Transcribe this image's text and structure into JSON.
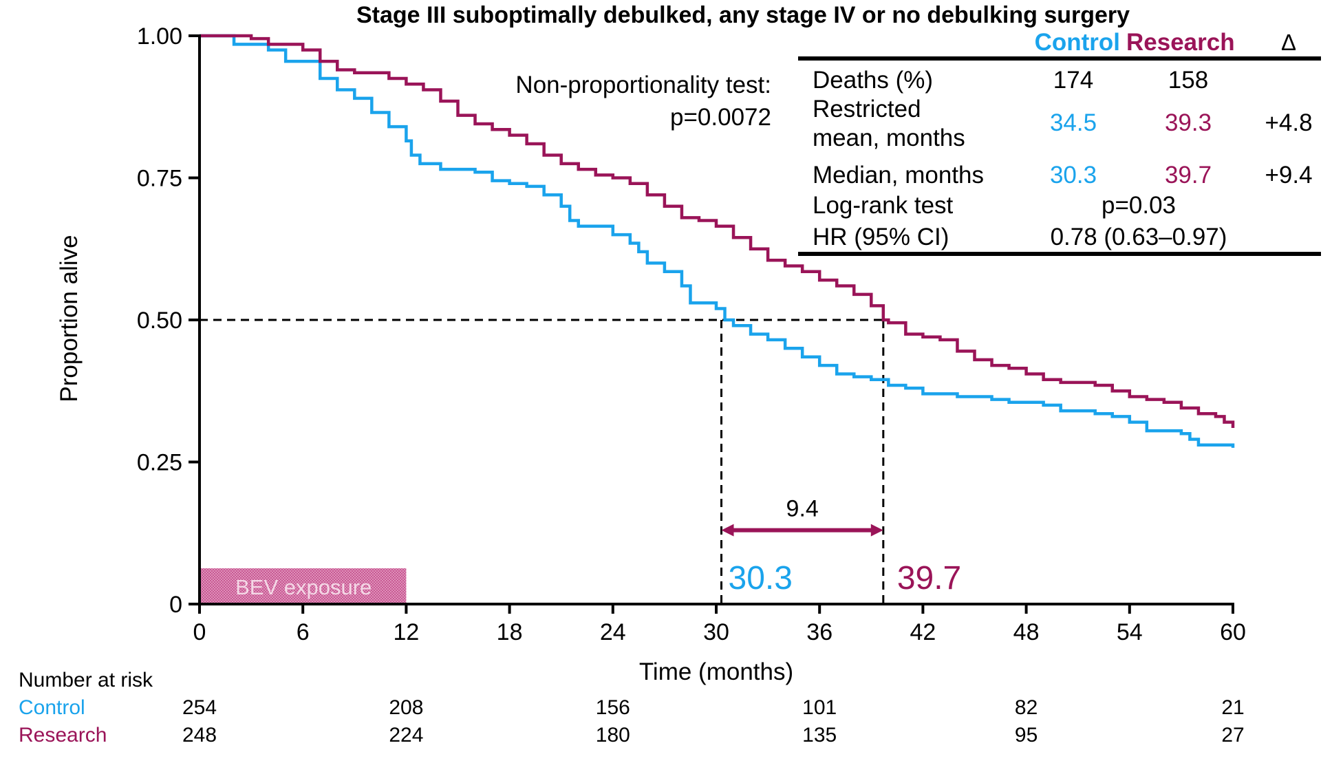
{
  "colors": {
    "control": "#1aa3ec",
    "research": "#9a1458",
    "axis": "#000000",
    "bev_fill": "#c44d8c"
  },
  "chart_data": {
    "type": "line",
    "subtype": "kaplan-meier",
    "title": "Stage III suboptimally debulked, any stage IV or  no debulking surgery",
    "xlabel": "Time (months)",
    "ylabel": "Proportion alive",
    "xlim": [
      0,
      60
    ],
    "ylim": [
      0,
      1
    ],
    "x_ticks": [
      "0",
      "6",
      "12",
      "18",
      "24",
      "30",
      "36",
      "42",
      "48",
      "54",
      "60"
    ],
    "y_ticks": [
      "0",
      "0.25",
      "0.50",
      "0.75",
      "1.00"
    ],
    "grid": false,
    "series": [
      {
        "name": "Control",
        "color": "#1aa3ec",
        "points": [
          [
            0,
            1.0
          ],
          [
            2,
            0.985
          ],
          [
            4,
            0.975
          ],
          [
            5,
            0.955
          ],
          [
            7,
            0.925
          ],
          [
            8,
            0.905
          ],
          [
            9,
            0.89
          ],
          [
            10,
            0.865
          ],
          [
            11,
            0.84
          ],
          [
            12,
            0.815
          ],
          [
            12.3,
            0.79
          ],
          [
            12.8,
            0.775
          ],
          [
            14,
            0.765
          ],
          [
            16,
            0.76
          ],
          [
            17,
            0.745
          ],
          [
            18,
            0.74
          ],
          [
            19,
            0.735
          ],
          [
            20,
            0.72
          ],
          [
            21,
            0.7
          ],
          [
            21.5,
            0.675
          ],
          [
            22,
            0.665
          ],
          [
            24,
            0.65
          ],
          [
            25,
            0.635
          ],
          [
            25.5,
            0.62
          ],
          [
            26,
            0.6
          ],
          [
            27,
            0.585
          ],
          [
            28,
            0.56
          ],
          [
            28.5,
            0.53
          ],
          [
            30,
            0.52
          ],
          [
            30.5,
            0.5
          ],
          [
            31,
            0.49
          ],
          [
            32,
            0.475
          ],
          [
            33,
            0.465
          ],
          [
            34,
            0.45
          ],
          [
            35,
            0.435
          ],
          [
            36,
            0.42
          ],
          [
            37,
            0.405
          ],
          [
            38,
            0.4
          ],
          [
            39,
            0.395
          ],
          [
            40,
            0.385
          ],
          [
            41,
            0.38
          ],
          [
            42,
            0.37
          ],
          [
            44,
            0.365
          ],
          [
            46,
            0.36
          ],
          [
            47,
            0.355
          ],
          [
            49,
            0.35
          ],
          [
            50,
            0.34
          ],
          [
            52,
            0.335
          ],
          [
            53,
            0.33
          ],
          [
            54,
            0.32
          ],
          [
            55,
            0.305
          ],
          [
            57,
            0.3
          ],
          [
            57.5,
            0.29
          ],
          [
            58,
            0.28
          ],
          [
            60,
            0.275
          ]
        ]
      },
      {
        "name": "Research",
        "color": "#9a1458",
        "points": [
          [
            0,
            1.0
          ],
          [
            3,
            0.995
          ],
          [
            4,
            0.985
          ],
          [
            6,
            0.975
          ],
          [
            7,
            0.955
          ],
          [
            8,
            0.94
          ],
          [
            9,
            0.935
          ],
          [
            11,
            0.925
          ],
          [
            12,
            0.915
          ],
          [
            13,
            0.905
          ],
          [
            14,
            0.885
          ],
          [
            15,
            0.86
          ],
          [
            16,
            0.845
          ],
          [
            17,
            0.835
          ],
          [
            18,
            0.825
          ],
          [
            19,
            0.81
          ],
          [
            20,
            0.79
          ],
          [
            21,
            0.775
          ],
          [
            22,
            0.765
          ],
          [
            23,
            0.755
          ],
          [
            24,
            0.75
          ],
          [
            25,
            0.74
          ],
          [
            26,
            0.72
          ],
          [
            27,
            0.7
          ],
          [
            28,
            0.68
          ],
          [
            29,
            0.675
          ],
          [
            30,
            0.665
          ],
          [
            31,
            0.645
          ],
          [
            32,
            0.625
          ],
          [
            33,
            0.605
          ],
          [
            34,
            0.595
          ],
          [
            35,
            0.585
          ],
          [
            36,
            0.57
          ],
          [
            37,
            0.56
          ],
          [
            38,
            0.545
          ],
          [
            39,
            0.525
          ],
          [
            39.7,
            0.5
          ],
          [
            40,
            0.495
          ],
          [
            41,
            0.475
          ],
          [
            42,
            0.47
          ],
          [
            43,
            0.465
          ],
          [
            44,
            0.445
          ],
          [
            45,
            0.43
          ],
          [
            46,
            0.42
          ],
          [
            47,
            0.415
          ],
          [
            48,
            0.405
          ],
          [
            49,
            0.395
          ],
          [
            50,
            0.39
          ],
          [
            52,
            0.385
          ],
          [
            53,
            0.375
          ],
          [
            54,
            0.365
          ],
          [
            55,
            0.36
          ],
          [
            56,
            0.355
          ],
          [
            57,
            0.345
          ],
          [
            58,
            0.335
          ],
          [
            59,
            0.33
          ],
          [
            59.5,
            0.32
          ],
          [
            60,
            0.31
          ]
        ]
      }
    ],
    "median_line_y": 0.5,
    "medians": {
      "control": 30.3,
      "research": 39.7
    },
    "median_labels": {
      "control": "30.3",
      "research": "39.7"
    },
    "difference_arrow": {
      "from": 30.3,
      "to": 39.7,
      "y": 0.13,
      "label": "9.4"
    },
    "bev_exposure": {
      "start": 0,
      "end": 12,
      "label": "BEV exposure"
    },
    "annotation": {
      "line1": "Non-proportionality test:",
      "line2": "p=0.0072"
    }
  },
  "summary_table": {
    "headers": {
      "control": "Control",
      "research": "Research",
      "delta": "Δ"
    },
    "rows": {
      "deaths": {
        "label": "Deaths (%)",
        "control": "174",
        "research": "158"
      },
      "restricted": {
        "label_line1": "Restricted",
        "label_line2": "mean, months",
        "control": "34.5",
        "research": "39.3",
        "delta": "+4.8"
      },
      "median": {
        "label": "Median, months",
        "control": "30.3",
        "research": "39.7",
        "delta": "+9.4"
      },
      "logrank": {
        "label": "Log-rank test",
        "value": "p=0.03"
      },
      "hr": {
        "label": "HR (95% CI)",
        "value": "0.78 (0.63–0.97)"
      }
    }
  },
  "number_at_risk": {
    "title": "Number at risk",
    "times": [
      0,
      12,
      24,
      36,
      48,
      60
    ],
    "rows": [
      {
        "label": "Control",
        "values": [
          "254",
          "208",
          "156",
          "101",
          "82",
          "21"
        ]
      },
      {
        "label": "Research",
        "values": [
          "248",
          "224",
          "180",
          "135",
          "95",
          "27"
        ]
      }
    ]
  }
}
